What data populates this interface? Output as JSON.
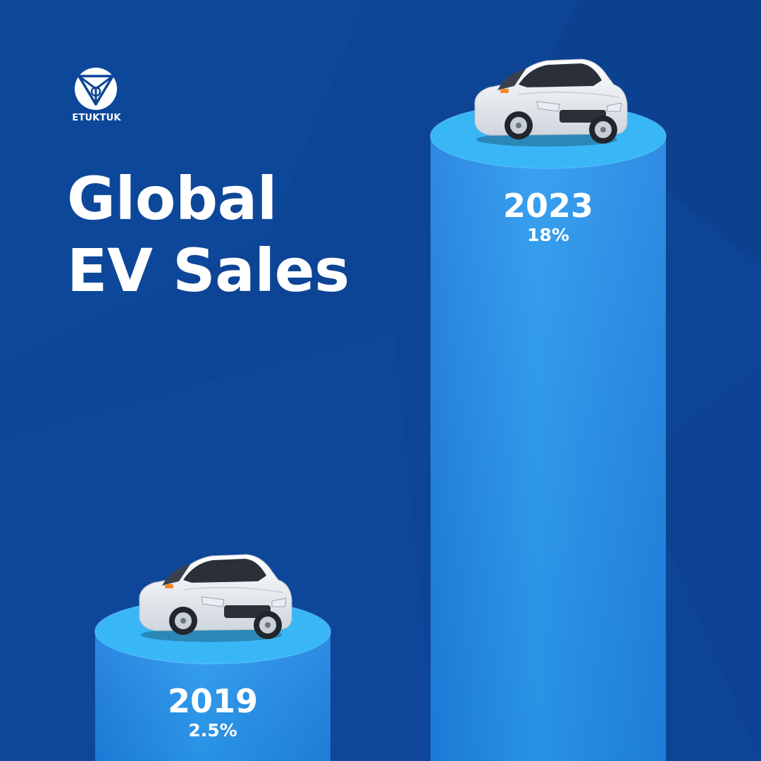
{
  "brand": {
    "name": "ETUKTUK"
  },
  "title": {
    "line1": "Global",
    "line2": "EV Sales"
  },
  "colors": {
    "background": "#0d4496",
    "bar_light": "#2a9af0",
    "bar_mid": "#1d7fe0",
    "bar_top": "#39b6f6",
    "text": "#ffffff"
  },
  "chart_data": {
    "type": "bar",
    "title": "Global EV Sales",
    "categories": [
      "2019",
      "2023"
    ],
    "values": [
      2.5,
      18
    ],
    "value_labels": [
      "2.5%",
      "18%"
    ],
    "unit": "%",
    "xlabel": "",
    "ylabel": "",
    "grid": false,
    "legend": "none",
    "ylim": [
      0,
      20
    ]
  }
}
